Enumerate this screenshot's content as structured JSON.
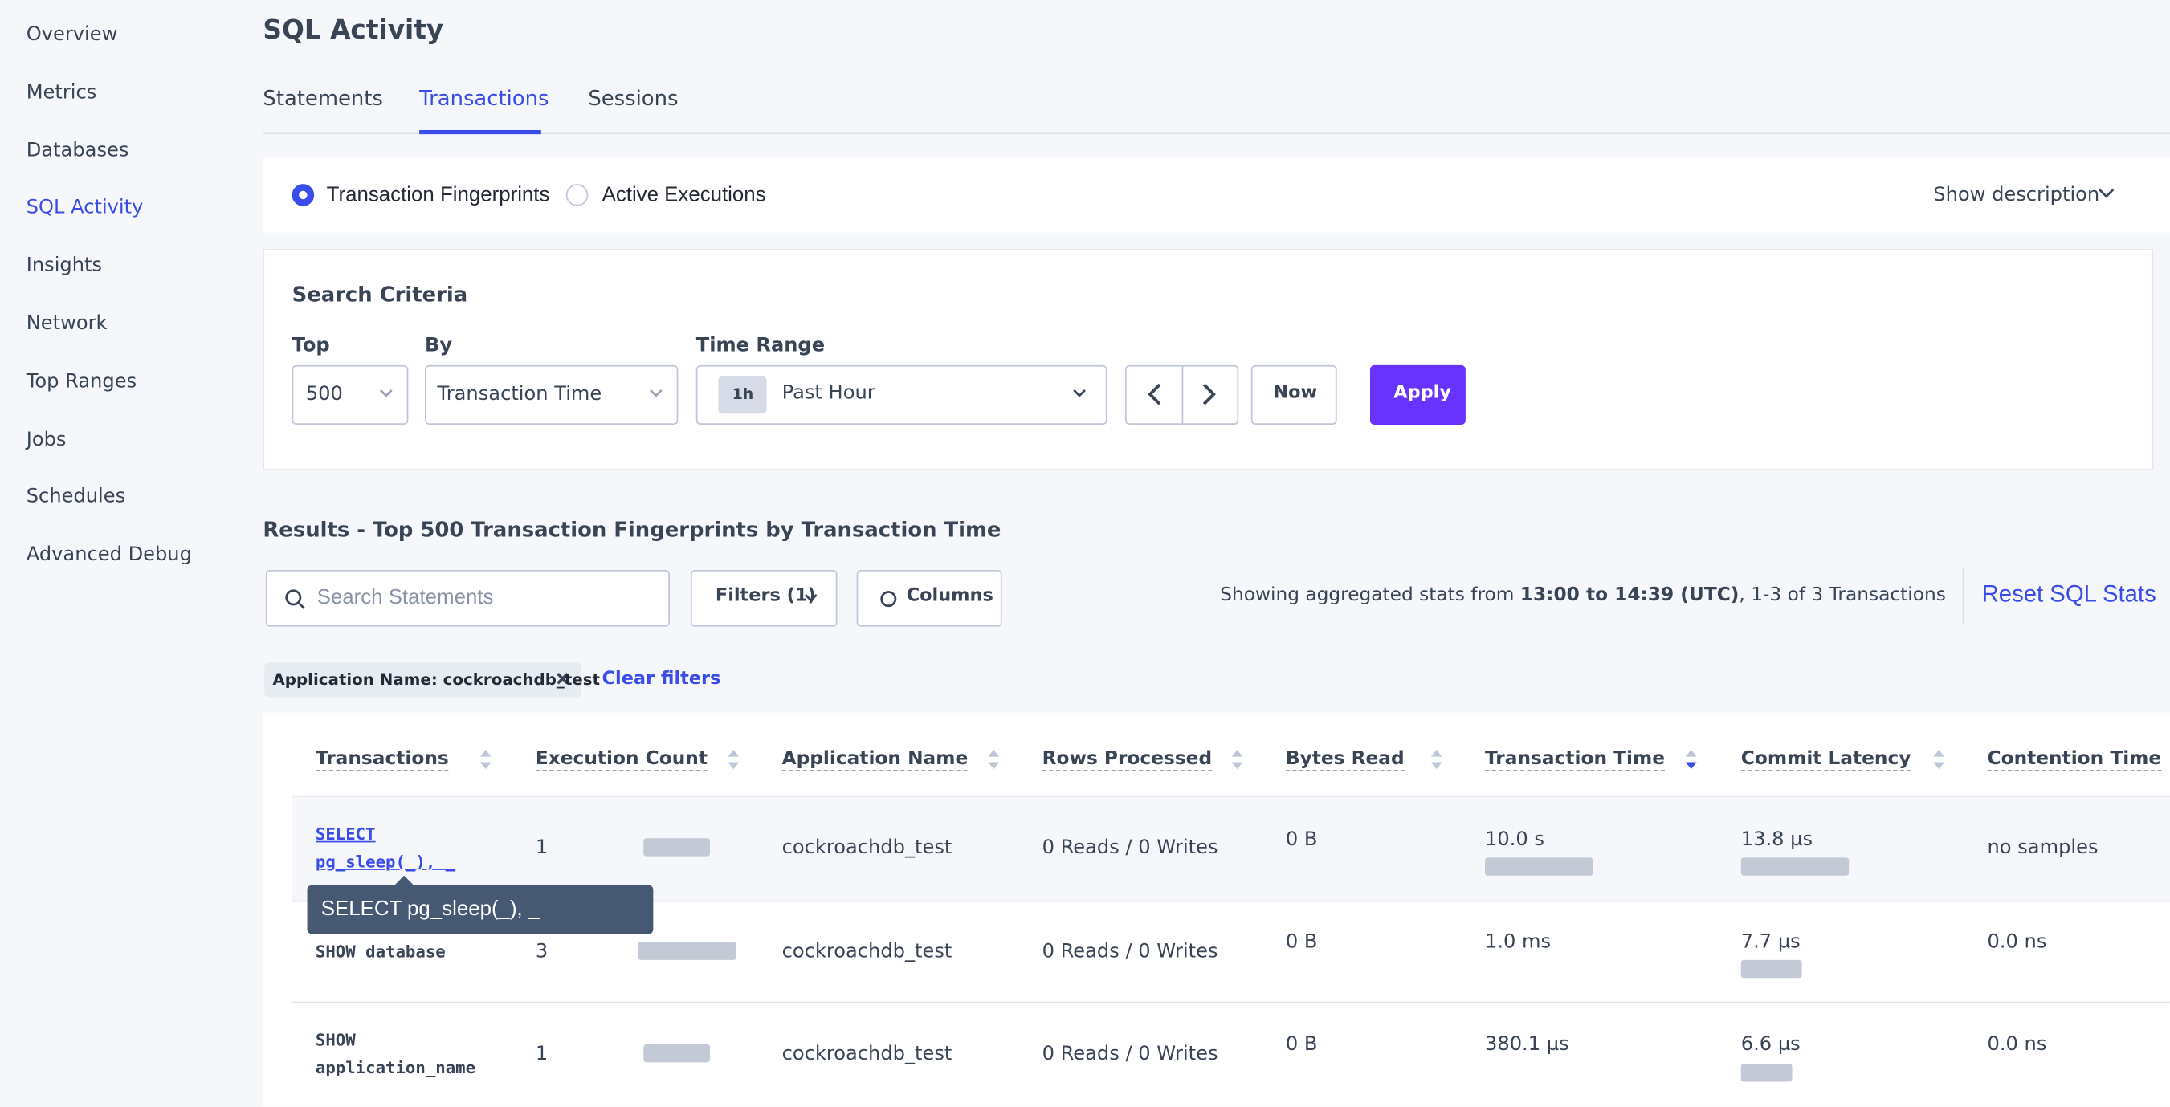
{
  "sidebar": {
    "items": [
      "Overview",
      "Metrics",
      "Databases",
      "SQL Activity",
      "Insights",
      "Network",
      "Top Ranges",
      "Jobs",
      "Schedules",
      "Advanced Debug"
    ]
  },
  "header": {
    "title": "SQL Activity",
    "tabs": [
      "Statements",
      "Transactions",
      "Sessions"
    ]
  },
  "view_toggle": {
    "options": [
      "Transaction Fingerprints",
      "Active Executions"
    ],
    "description": "Show description"
  },
  "search_criteria": {
    "title": "Search Criteria",
    "top_label": "Top",
    "top_value": "500",
    "by_label": "By",
    "by_value": "Transaction Time",
    "time_label": "Time Range",
    "time_badge": "1h",
    "time_value": "Past Hour",
    "now": "Now",
    "apply": "Apply"
  },
  "results": {
    "title": "Results - Top 500 Transaction Fingerprints by Transaction Time",
    "search_placeholder": "Search Statements",
    "filters": "Filters (1)",
    "columns": "Columns",
    "stats": [
      "Showing aggregated stats from ",
      "13:00 to 14:39 (UTC)",
      ", 1-3 of 3 Transactions"
    ],
    "reset": "Reset SQL Stats",
    "chip": "Application Name: cockroachdb_test",
    "clear": "Clear filters"
  },
  "table": {
    "headers": [
      "Transactions",
      "Execution Count",
      "Application Name",
      "Rows Processed",
      "Bytes Read",
      "Transaction Time",
      "Commit Latency",
      "Contention Time"
    ],
    "rows": [
      [
        "SELECT pg_sleep(_), _",
        "1",
        "cockroachdb_test",
        "0 Reads / 0 Writes",
        "0 B",
        "10.0 s",
        "13.8 µs",
        "no samples"
      ],
      [
        "SHOW database",
        "3",
        "cockroachdb_test",
        "0 Reads / 0 Writes",
        "0 B",
        "1.0 ms",
        "7.7 µs",
        "0.0 ns"
      ],
      [
        "SHOW application_name",
        "1",
        "cockroachdb_test",
        "0 Reads / 0 Writes",
        "0 B",
        "380.1 µs",
        "6.6 µs",
        "0.0 ns"
      ]
    ],
    "tooltip": "SELECT pg_sleep(_), _"
  }
}
